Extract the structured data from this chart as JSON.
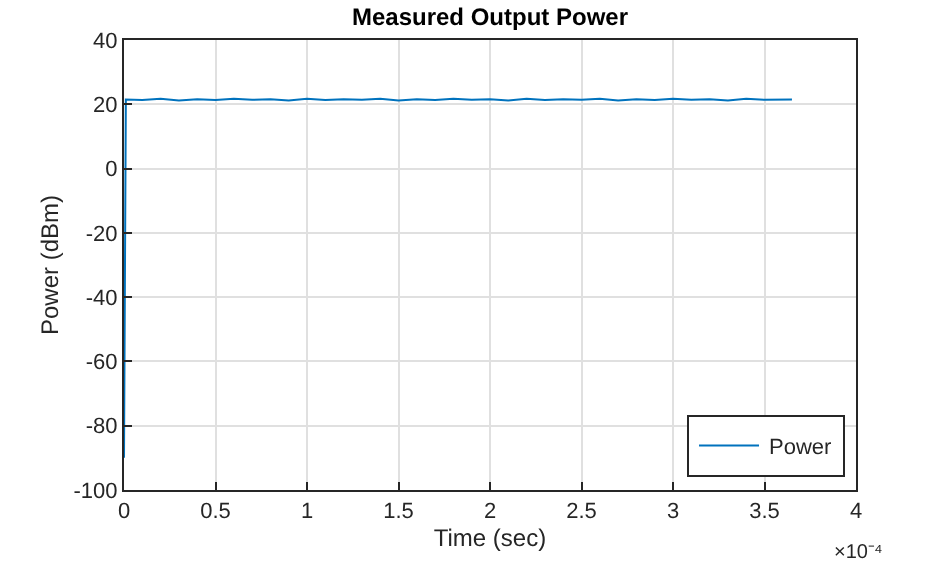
{
  "chart_data": {
    "type": "line",
    "title": "Measured Output Power",
    "xlabel": "Time (sec)",
    "ylabel": "Power (dBm)",
    "annotations": [
      "×10⁻⁴"
    ],
    "series": [
      {
        "name": "Power",
        "color": "#0072bd",
        "x": [
          0,
          0.01,
          0.1,
          0.2,
          0.3,
          0.4,
          0.5,
          0.6,
          0.7,
          0.8,
          0.9,
          1.0,
          1.1,
          1.2,
          1.3,
          1.4,
          1.5,
          1.6,
          1.7,
          1.8,
          1.9,
          2.0,
          2.1,
          2.2,
          2.3,
          2.4,
          2.5,
          2.6,
          2.7,
          2.8,
          2.9,
          3.0,
          3.1,
          3.2,
          3.3,
          3.4,
          3.5,
          3.65
        ],
        "values": [
          -90,
          21.5,
          21.3,
          21.7,
          21.2,
          21.6,
          21.3,
          21.7,
          21.4,
          21.6,
          21.2,
          21.7,
          21.3,
          21.6,
          21.4,
          21.7,
          21.2,
          21.6,
          21.3,
          21.7,
          21.4,
          21.6,
          21.2,
          21.7,
          21.3,
          21.6,
          21.4,
          21.7,
          21.2,
          21.6,
          21.3,
          21.7,
          21.4,
          21.6,
          21.2,
          21.7,
          21.4,
          21.5
        ]
      }
    ],
    "xlim": [
      0,
      4
    ],
    "xticks": [
      0,
      0.5,
      1,
      1.5,
      2,
      2.5,
      3,
      3.5,
      4
    ],
    "ylim": [
      -100,
      40
    ],
    "yticks": [
      -100,
      -80,
      -60,
      -40,
      -20,
      0,
      20,
      40
    ],
    "grid": true,
    "legend": "bottom right",
    "marker": "none",
    "line_style": "solid"
  }
}
